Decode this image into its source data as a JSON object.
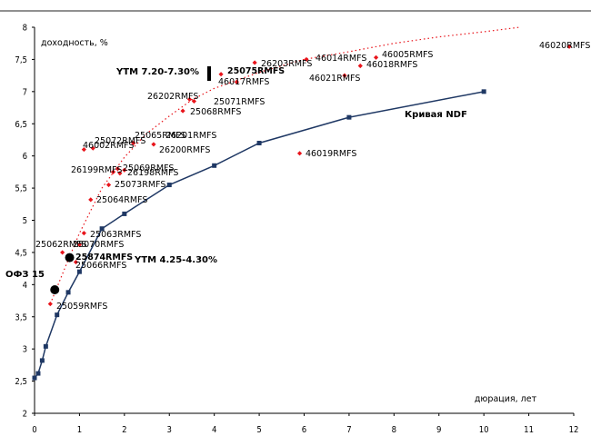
{
  "chart_data": {
    "type": "scatter",
    "xlabel": "дюрация, лет",
    "ylabel": "доходность, %",
    "xlim": [
      0,
      12
    ],
    "ylim": [
      2,
      8
    ],
    "xticks": [
      "0",
      "1",
      "2",
      "3",
      "4",
      "5",
      "6",
      "7",
      "8",
      "9",
      "10",
      "11",
      "12"
    ],
    "yticks": [
      "2",
      "2,5",
      "3",
      "3,5",
      "4",
      "4,5",
      "5",
      "5,5",
      "6",
      "6,5",
      "7",
      "7,5",
      "8"
    ],
    "grid": false,
    "series": [
      {
        "name": "Кривая NDF",
        "type": "line",
        "color": "#1f3864",
        "x": [
          0.0,
          0.08,
          0.17,
          0.25,
          0.5,
          0.75,
          1.0,
          1.5,
          2.0,
          3.0,
          4.0,
          5.0,
          7.0,
          10.0
        ],
        "y": [
          2.55,
          2.62,
          2.82,
          3.04,
          3.53,
          3.88,
          4.2,
          4.87,
          5.1,
          5.55,
          5.85,
          6.2,
          6.6,
          7.0
        ]
      },
      {
        "type": "scatter",
        "color": "#e8141b",
        "points": [
          {
            "label": "25059RMFS",
            "x": 0.35,
            "y": 3.7
          },
          {
            "label": "25062RMFS",
            "x": 0.62,
            "y": 4.5
          },
          {
            "label": "25874RMFS",
            "x": 0.8,
            "y": 4.45
          },
          {
            "label": "25066RMFS",
            "x": 0.92,
            "y": 4.35
          },
          {
            "label": "25070RMFS",
            "x": 1.0,
            "y": 4.62
          },
          {
            "label": "25063RMFS",
            "x": 1.1,
            "y": 4.8
          },
          {
            "label": "25064RMFS",
            "x": 1.25,
            "y": 5.32
          },
          {
            "label": "25073RMFS",
            "x": 1.65,
            "y": 5.55
          },
          {
            "label": "26199RMFS",
            "x": 1.75,
            "y": 5.75
          },
          {
            "label": "25069RMFS",
            "x": 1.85,
            "y": 5.8
          },
          {
            "label": "26198RMFS",
            "x": 1.9,
            "y": 5.73
          },
          {
            "label": "26200RMFS",
            "x": 2.0,
            "y": 5.78
          },
          {
            "label": "46002RMFS",
            "x": 1.1,
            "y": 6.1
          },
          {
            "label": "25072RMFS",
            "x": 1.3,
            "y": 6.12
          },
          {
            "label": "25065RMFS",
            "x": 2.2,
            "y": 6.2
          },
          {
            "label": "26201RMFS",
            "x": 2.65,
            "y": 6.18
          },
          {
            "label": "25068RMFS",
            "x": 3.3,
            "y": 6.7
          },
          {
            "label": "25071RMFS",
            "x": 3.55,
            "y": 6.85
          },
          {
            "label": "26202RMFS",
            "x": 3.45,
            "y": 6.88
          },
          {
            "label": "25075RMFS",
            "x": 4.15,
            "y": 7.27
          },
          {
            "label": "46017RMFS",
            "x": 4.5,
            "y": 7.15
          },
          {
            "label": "26203RMFS",
            "x": 4.9,
            "y": 7.45
          },
          {
            "label": "46014RMFS",
            "x": 6.05,
            "y": 7.5
          },
          {
            "label": "46021RMFS",
            "x": 6.9,
            "y": 7.25
          },
          {
            "label": "46018RMFS",
            "x": 7.25,
            "y": 7.4
          },
          {
            "label": "46005RMFS",
            "x": 7.6,
            "y": 7.53
          },
          {
            "label": "46019RMFS",
            "x": 5.9,
            "y": 6.04
          },
          {
            "label": "46020RMFS",
            "x": 11.9,
            "y": 7.7
          }
        ]
      },
      {
        "name": "trend",
        "type": "dotted-line",
        "color": "#e8141b",
        "x": [
          0.35,
          0.7,
          1.0,
          1.5,
          2.0,
          2.5,
          3.0,
          3.5,
          4.0,
          5.0,
          6.0,
          7.0,
          8.0,
          9.0,
          10.0,
          10.8
        ],
        "y": [
          3.7,
          4.3,
          4.8,
          5.5,
          5.98,
          6.35,
          6.62,
          6.87,
          7.05,
          7.3,
          7.5,
          7.62,
          7.75,
          7.85,
          7.93,
          8.0
        ]
      },
      {
        "name": "ОФЗ 15",
        "type": "marker",
        "x": 0.45,
        "y": 3.92
      },
      {
        "name": "25874 marker",
        "type": "marker",
        "x": 0.78,
        "y": 4.42
      }
    ],
    "annotations": [
      {
        "text": "YTM 7.20-7.30%",
        "x": 1.85,
        "y": 7.32
      },
      {
        "text": "YTM 4.25-4.30%",
        "x": 2.25,
        "y": 4.35
      },
      {
        "text": "ОФЗ 15",
        "x": -0.4,
        "y": 4.1
      },
      {
        "text": "Кривая NDF",
        "x": 8.15,
        "y": 6.57
      }
    ]
  }
}
